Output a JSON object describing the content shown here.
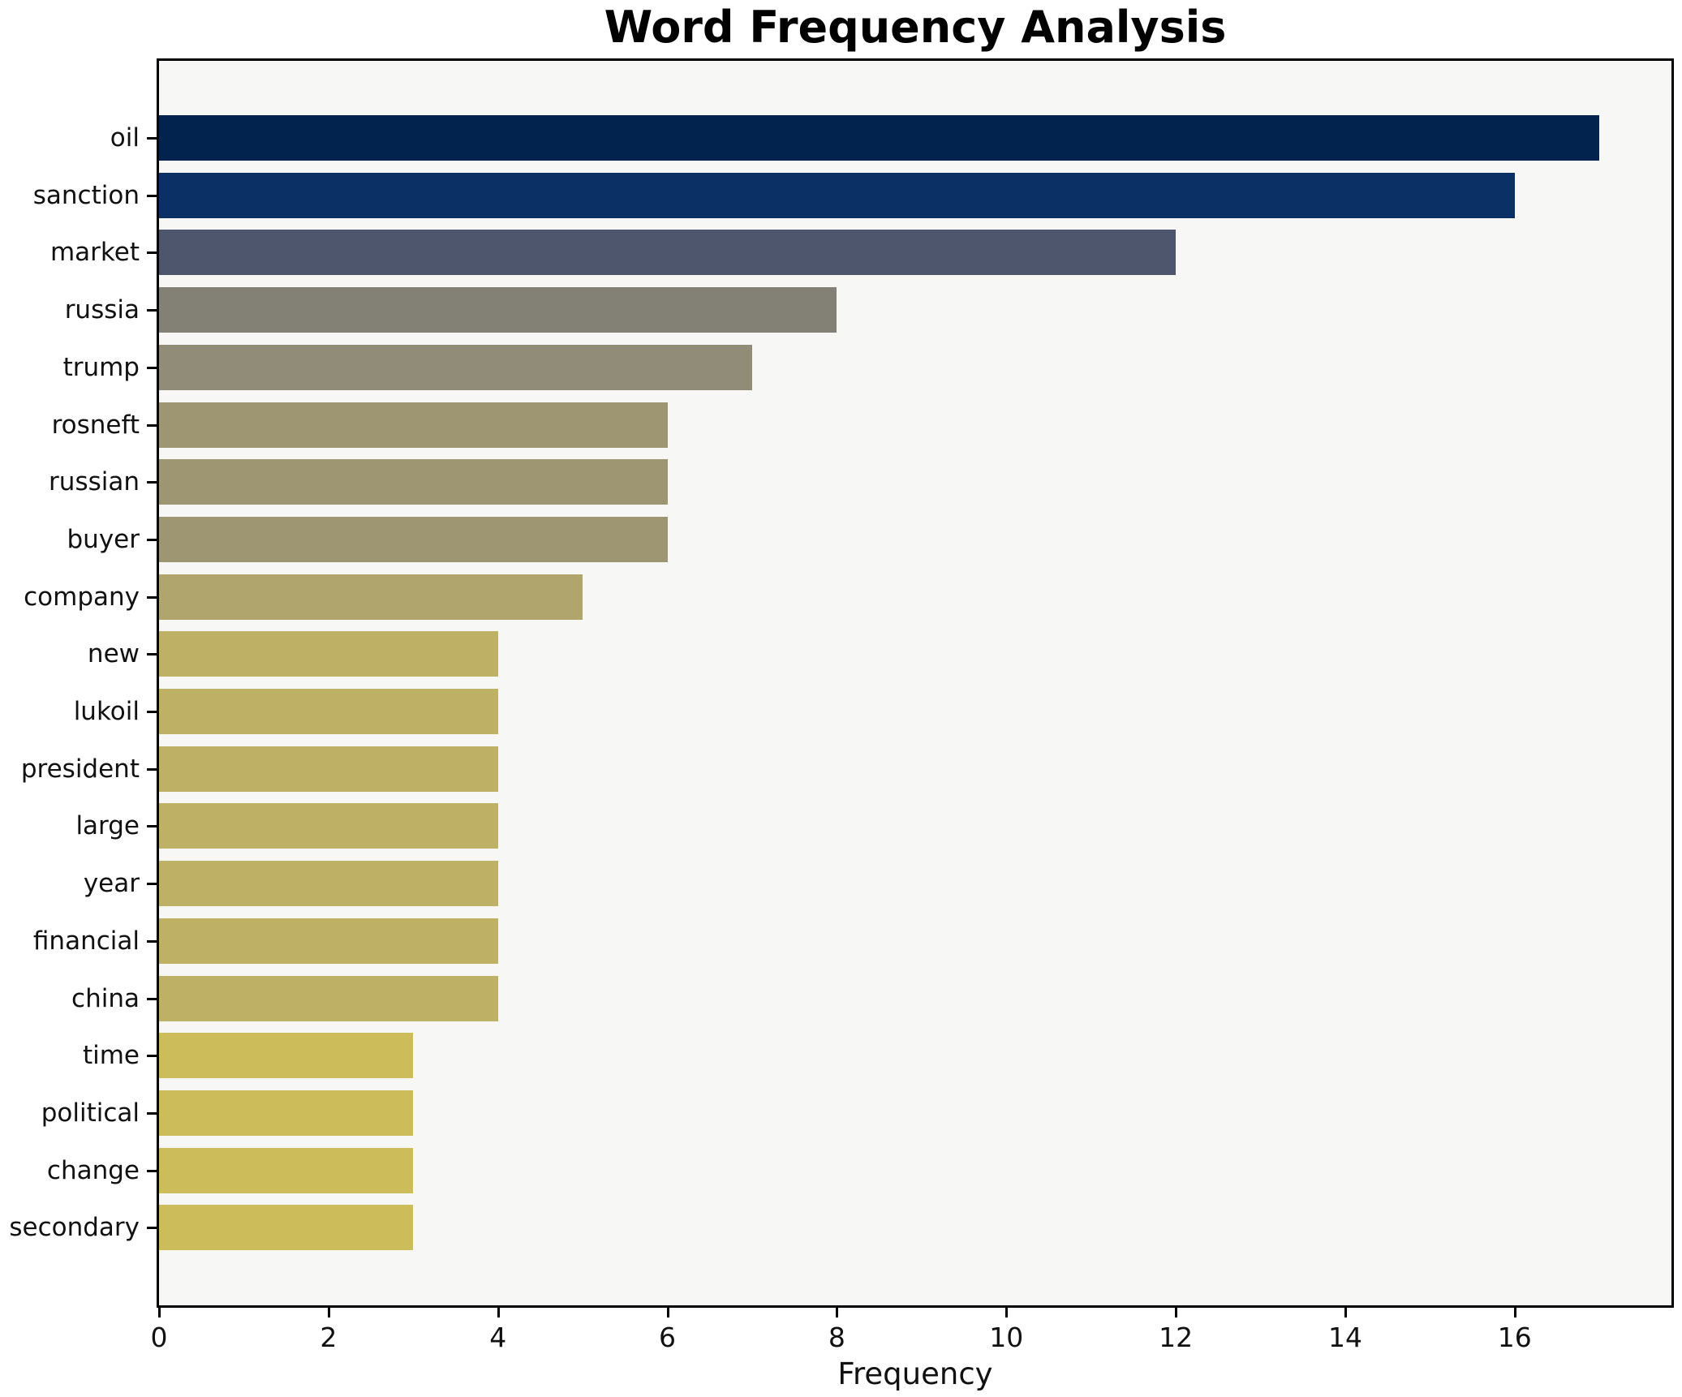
{
  "chart_data": {
    "type": "bar",
    "orientation": "horizontal",
    "title": "Word Frequency Analysis",
    "xlabel": "Frequency",
    "ylabel": "",
    "categories": [
      "oil",
      "sanction",
      "market",
      "russia",
      "trump",
      "rosneft",
      "russian",
      "buyer",
      "company",
      "new",
      "lukoil",
      "president",
      "large",
      "year",
      "financial",
      "china",
      "time",
      "political",
      "change",
      "secondary"
    ],
    "values": [
      17,
      16,
      12,
      8,
      7,
      6,
      6,
      6,
      5,
      4,
      4,
      4,
      4,
      4,
      4,
      4,
      3,
      3,
      3,
      3
    ],
    "bar_colors": [
      "#03234f",
      "#0b3065",
      "#4d566c",
      "#838076",
      "#918c77",
      "#9e9673",
      "#9e9673",
      "#9e9673",
      "#b0a56c",
      "#beb065",
      "#beb065",
      "#beb065",
      "#beb065",
      "#beb065",
      "#beb065",
      "#beb065",
      "#cdbc5a",
      "#cdbc5a",
      "#cdbc5a",
      "#cdbc5a"
    ],
    "xlim": [
      0,
      17.85
    ],
    "xticks": [
      0,
      2,
      4,
      6,
      8,
      10,
      12,
      14,
      16
    ],
    "grid": false,
    "legend": "none",
    "plot_background": "#f7f7f6",
    "figure_background": "#ffffff",
    "axis_color": "#000000"
  }
}
